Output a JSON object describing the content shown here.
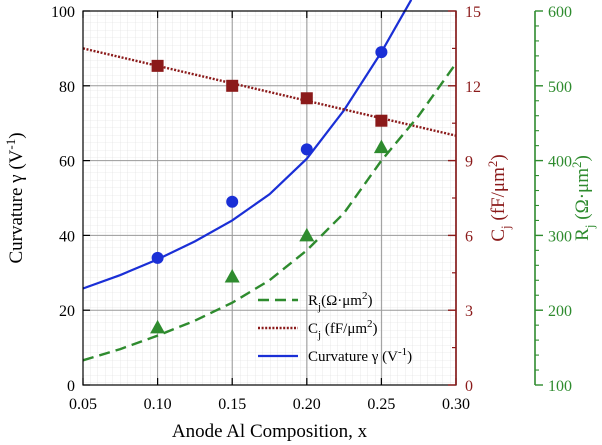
{
  "chart_data": {
    "type": "line",
    "x_axis": {
      "label": "Anode Al Composition, x",
      "range": [
        0.05,
        0.3
      ],
      "ticks": [
        0.05,
        0.1,
        0.15,
        0.2,
        0.25,
        0.3
      ],
      "tick_labels": [
        "0.05",
        "0.10",
        "0.15",
        "0.20",
        "0.25",
        "0.30"
      ]
    },
    "y_axes": {
      "left": {
        "label_main": "Curvature γ (V",
        "label_sup": "-1",
        "label_end": ")",
        "range": [
          0,
          100
        ],
        "ticks": [
          0,
          20,
          40,
          60,
          80,
          100
        ],
        "tick_labels": [
          "0",
          "20",
          "40",
          "60",
          "80",
          "100"
        ],
        "color": "#000000"
      },
      "right1": {
        "label_c": "C",
        "label_sub": "j",
        "label_units": " (fF/μm",
        "label_sup": "2",
        "label_end": ")",
        "range": [
          0,
          15
        ],
        "ticks": [
          0,
          3,
          6,
          9,
          12,
          15
        ],
        "tick_labels": [
          "0",
          "3",
          "6",
          "9",
          "12",
          "15"
        ],
        "color": "#8b1a1a"
      },
      "right2": {
        "label_r": "R",
        "label_sub": "j",
        "label_units": " (Ω·μm",
        "label_sup": "2",
        "label_end": ")",
        "range": [
          100,
          600
        ],
        "ticks": [
          100,
          200,
          300,
          400,
          500,
          600
        ],
        "tick_labels": [
          "100",
          "200",
          "300",
          "400",
          "500",
          "600"
        ],
        "color": "#2e8b2e"
      }
    },
    "grid": true,
    "legend": {
      "placement": "bottom-right",
      "entries": [
        {
          "series": "Rj",
          "main": "R",
          "sub": "j",
          "rest": "(Ω·μm",
          "sup": "2",
          "end": ")"
        },
        {
          "series": "Cj",
          "main": "C",
          "sub": "j",
          "rest": " (fF/μm",
          "sup": "2",
          "end": ")"
        },
        {
          "series": "curvature",
          "main": "Curvature γ (V",
          "sub": "",
          "rest": "",
          "sup": "-1",
          "end": ")"
        }
      ]
    },
    "series": [
      {
        "id": "curvature",
        "axis": "left",
        "color": "#1a2fd6",
        "line_style": "solid",
        "marker": "circle",
        "points": [
          [
            0.1,
            34
          ],
          [
            0.15,
            49
          ],
          [
            0.2,
            63
          ],
          [
            0.25,
            89
          ]
        ],
        "fit": [
          [
            0.05,
            25.8
          ],
          [
            0.075,
            29.4
          ],
          [
            0.1,
            33.6
          ],
          [
            0.125,
            38.4
          ],
          [
            0.15,
            44.0
          ],
          [
            0.175,
            51.0
          ],
          [
            0.2,
            60.5
          ],
          [
            0.225,
            73.5
          ],
          [
            0.25,
            89.0
          ],
          [
            0.26,
            96.0
          ],
          [
            0.27,
            103.0
          ]
        ]
      },
      {
        "id": "Cj",
        "axis": "right1",
        "color": "#8b1a1a",
        "line_style": "dotted",
        "marker": "square",
        "points": [
          [
            0.1,
            12.8
          ],
          [
            0.15,
            12.0
          ],
          [
            0.2,
            11.5
          ],
          [
            0.25,
            10.6
          ]
        ],
        "fit": [
          [
            0.05,
            13.5
          ],
          [
            0.3,
            10.0
          ]
        ]
      },
      {
        "id": "Rj",
        "axis": "right2",
        "color": "#2e8b2e",
        "line_style": "dashed",
        "marker": "triangle",
        "points": [
          [
            0.1,
            177
          ],
          [
            0.15,
            245
          ],
          [
            0.2,
            300
          ],
          [
            0.25,
            418
          ]
        ],
        "fit": [
          [
            0.05,
            133
          ],
          [
            0.075,
            148
          ],
          [
            0.1,
            166
          ],
          [
            0.125,
            186
          ],
          [
            0.15,
            210
          ],
          [
            0.175,
            240
          ],
          [
            0.2,
            280
          ],
          [
            0.225,
            330
          ],
          [
            0.25,
            400
          ],
          [
            0.275,
            460
          ],
          [
            0.3,
            530
          ]
        ]
      }
    ]
  }
}
